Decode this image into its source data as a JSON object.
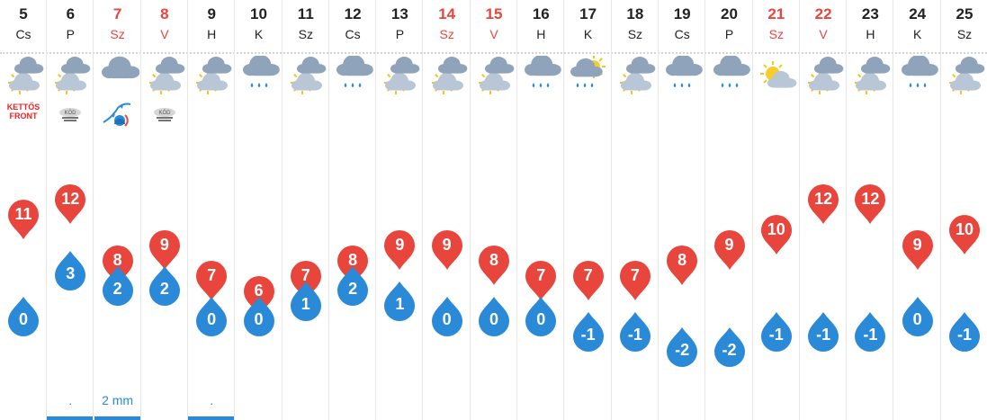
{
  "colors": {
    "max_marker": "#e8453c",
    "min_marker": "#2a8ad8",
    "weekend": "#e8453c",
    "text": "#222222"
  },
  "chart_data": {
    "type": "line",
    "days": [
      {
        "date": "5",
        "dow": "Cs",
        "weekend": false,
        "icon": "partly-cloudy-icon",
        "badge": "double-front-icon",
        "badge_text": "KETTŐS FRONT",
        "max": 11,
        "min": 0,
        "precip": "",
        "precip_bar": false
      },
      {
        "date": "6",
        "dow": "P",
        "weekend": false,
        "icon": "partly-cloudy-icon",
        "badge": "fog-icon",
        "badge_text": "KÖD",
        "max": 12,
        "min": 3,
        "precip": ".",
        "precip_bar": true
      },
      {
        "date": "7",
        "dow": "Sz",
        "weekend": true,
        "icon": "cloudy-icon",
        "badge": "cold-front-icon",
        "badge_text": "",
        "max": 8,
        "min": 2,
        "precip": "2 mm",
        "precip_bar": true
      },
      {
        "date": "8",
        "dow": "V",
        "weekend": true,
        "icon": "partly-cloudy-icon",
        "badge": "fog-icon",
        "badge_text": "KÖD",
        "max": 9,
        "min": 2,
        "precip": "",
        "precip_bar": false
      },
      {
        "date": "9",
        "dow": "H",
        "weekend": false,
        "icon": "partly-cloudy-icon",
        "badge": "",
        "badge_text": "",
        "max": 7,
        "min": 0,
        "precip": ".",
        "precip_bar": true
      },
      {
        "date": "10",
        "dow": "K",
        "weekend": false,
        "icon": "rain-icon",
        "badge": "",
        "badge_text": "",
        "max": 6,
        "min": 0,
        "precip": "",
        "precip_bar": false
      },
      {
        "date": "11",
        "dow": "Sz",
        "weekend": false,
        "icon": "partly-cloudy-icon",
        "badge": "",
        "badge_text": "",
        "max": 7,
        "min": 1,
        "precip": "",
        "precip_bar": false
      },
      {
        "date": "12",
        "dow": "Cs",
        "weekend": false,
        "icon": "rain-icon",
        "badge": "",
        "badge_text": "",
        "max": 8,
        "min": 2,
        "precip": "",
        "precip_bar": false
      },
      {
        "date": "13",
        "dow": "P",
        "weekend": false,
        "icon": "partly-cloudy-icon",
        "badge": "",
        "badge_text": "",
        "max": 9,
        "min": 1,
        "precip": "",
        "precip_bar": false
      },
      {
        "date": "14",
        "dow": "Sz",
        "weekend": true,
        "icon": "partly-cloudy-icon",
        "badge": "",
        "badge_text": "",
        "max": 9,
        "min": 0,
        "precip": "",
        "precip_bar": false
      },
      {
        "date": "15",
        "dow": "V",
        "weekend": true,
        "icon": "partly-cloudy-icon",
        "badge": "",
        "badge_text": "",
        "max": 8,
        "min": 0,
        "precip": "",
        "precip_bar": false
      },
      {
        "date": "16",
        "dow": "H",
        "weekend": false,
        "icon": "rain-icon",
        "badge": "",
        "badge_text": "",
        "max": 7,
        "min": 0,
        "precip": "",
        "precip_bar": false
      },
      {
        "date": "17",
        "dow": "K",
        "weekend": false,
        "icon": "sun-cloud-rain-icon",
        "badge": "",
        "badge_text": "",
        "max": 7,
        "min": -1,
        "precip": "",
        "precip_bar": false
      },
      {
        "date": "18",
        "dow": "Sz",
        "weekend": false,
        "icon": "partly-cloudy-icon",
        "badge": "",
        "badge_text": "",
        "max": 7,
        "min": -1,
        "precip": "",
        "precip_bar": false
      },
      {
        "date": "19",
        "dow": "Cs",
        "weekend": false,
        "icon": "rain-icon",
        "badge": "",
        "badge_text": "",
        "max": 8,
        "min": -2,
        "precip": "",
        "precip_bar": false
      },
      {
        "date": "20",
        "dow": "P",
        "weekend": false,
        "icon": "rain-icon",
        "badge": "",
        "badge_text": "",
        "max": 9,
        "min": -2,
        "precip": "",
        "precip_bar": false
      },
      {
        "date": "21",
        "dow": "Sz",
        "weekend": true,
        "icon": "mostly-sunny-icon",
        "badge": "",
        "badge_text": "",
        "max": 10,
        "min": -1,
        "precip": "",
        "precip_bar": false
      },
      {
        "date": "22",
        "dow": "V",
        "weekend": true,
        "icon": "partly-cloudy-icon",
        "badge": "",
        "badge_text": "",
        "max": 12,
        "min": -1,
        "precip": "",
        "precip_bar": false
      },
      {
        "date": "23",
        "dow": "H",
        "weekend": false,
        "icon": "partly-cloudy-icon",
        "badge": "",
        "badge_text": "",
        "max": 12,
        "min": -1,
        "precip": "",
        "precip_bar": false
      },
      {
        "date": "24",
        "dow": "K",
        "weekend": false,
        "icon": "rain-icon",
        "badge": "",
        "badge_text": "",
        "max": 9,
        "min": 0,
        "precip": "",
        "precip_bar": false
      },
      {
        "date": "25",
        "dow": "Sz",
        "weekend": false,
        "icon": "partly-cloudy-icon",
        "badge": "",
        "badge_text": "",
        "max": 10,
        "min": -1,
        "precip": "",
        "precip_bar": false
      }
    ]
  }
}
